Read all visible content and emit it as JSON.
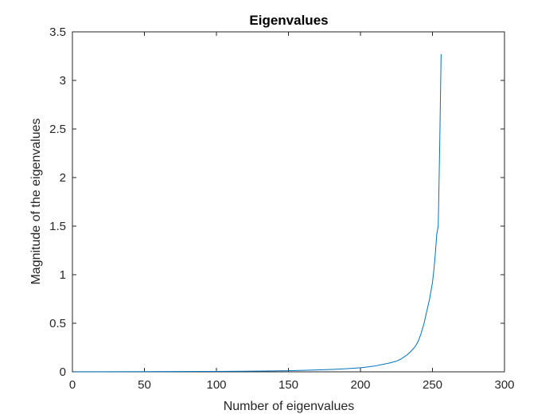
{
  "chart_data": {
    "type": "line",
    "title": "Eigenvalues",
    "xlabel": "Number of eigenvalues",
    "ylabel": "Magnitude of the eigenvalues",
    "xlim": [
      0,
      300
    ],
    "ylim": [
      0,
      3.5
    ],
    "xticks": [
      "0",
      "50",
      "100",
      "150",
      "200",
      "250",
      "300"
    ],
    "yticks": [
      "0",
      "0.5",
      "1",
      "1.5",
      "2",
      "2.5",
      "3",
      "3.5"
    ],
    "grid": false,
    "colors": {
      "line": "#0072BD",
      "axes": "#262626",
      "background": "#ffffff"
    },
    "series": [
      {
        "x": [
          1,
          50,
          100,
          120,
          140,
          150,
          160,
          170,
          180,
          190,
          200,
          205,
          210,
          215,
          220,
          225,
          228,
          230,
          232,
          235,
          238,
          240,
          242,
          244,
          246,
          248,
          250,
          251,
          252,
          253,
          254,
          255,
          256
        ],
        "y": [
          0.001,
          0.002,
          0.004,
          0.006,
          0.009,
          0.011,
          0.015,
          0.019,
          0.025,
          0.032,
          0.042,
          0.05,
          0.06,
          0.075,
          0.09,
          0.11,
          0.13,
          0.15,
          0.17,
          0.21,
          0.26,
          0.31,
          0.39,
          0.49,
          0.62,
          0.75,
          0.92,
          1.05,
          1.22,
          1.42,
          1.5,
          2.3,
          3.27
        ]
      }
    ]
  }
}
